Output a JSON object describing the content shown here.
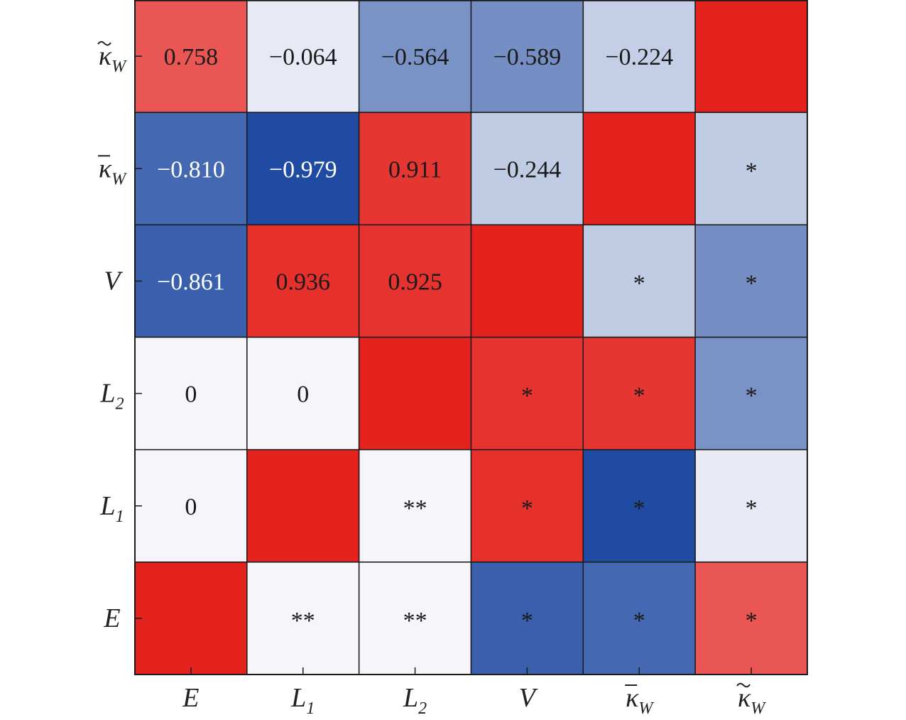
{
  "chart_data": {
    "type": "heatmap",
    "x_labels": [
      {
        "base": "E",
        "sub": "",
        "mark": ""
      },
      {
        "base": "L",
        "sub": "1",
        "mark": ""
      },
      {
        "base": "L",
        "sub": "2",
        "mark": ""
      },
      {
        "base": "V",
        "sub": "",
        "mark": ""
      },
      {
        "base": "κ",
        "sub": "W",
        "mark": "bar"
      },
      {
        "base": "κ",
        "sub": "W",
        "mark": "tilde"
      }
    ],
    "y_labels_top_to_bottom": [
      {
        "base": "κ",
        "sub": "W",
        "mark": "tilde"
      },
      {
        "base": "κ",
        "sub": "W",
        "mark": "bar"
      },
      {
        "base": "V",
        "sub": "",
        "mark": ""
      },
      {
        "base": "L",
        "sub": "2",
        "mark": ""
      },
      {
        "base": "L",
        "sub": "1",
        "mark": ""
      },
      {
        "base": "E",
        "sub": "",
        "mark": ""
      }
    ],
    "cells_top_to_bottom": [
      [
        {
          "value": 0.758,
          "text": "0.758"
        },
        {
          "value": -0.064,
          "text": "−0.064"
        },
        {
          "value": -0.564,
          "text": "−0.564"
        },
        {
          "value": -0.589,
          "text": "−0.589"
        },
        {
          "value": -0.224,
          "text": "−0.224"
        },
        {
          "value": 1,
          "text": ""
        }
      ],
      [
        {
          "value": -0.81,
          "text": "−0.810"
        },
        {
          "value": -0.979,
          "text": "−0.979"
        },
        {
          "value": 0.911,
          "text": "0.911"
        },
        {
          "value": -0.244,
          "text": "−0.244"
        },
        {
          "value": 1,
          "text": ""
        },
        {
          "value": -0.244,
          "text": "*"
        }
      ],
      [
        {
          "value": -0.861,
          "text": "−0.861"
        },
        {
          "value": 0.936,
          "text": "0.936"
        },
        {
          "value": 0.925,
          "text": "0.925"
        },
        {
          "value": 1,
          "text": ""
        },
        {
          "value": -0.244,
          "text": "*"
        },
        {
          "value": -0.589,
          "text": "*"
        }
      ],
      [
        {
          "value": 0,
          "text": "0"
        },
        {
          "value": 0,
          "text": "0"
        },
        {
          "value": 1,
          "text": ""
        },
        {
          "value": 0.925,
          "text": "*"
        },
        {
          "value": 0.911,
          "text": "*"
        },
        {
          "value": -0.564,
          "text": "*"
        }
      ],
      [
        {
          "value": 0,
          "text": "0"
        },
        {
          "value": 1,
          "text": ""
        },
        {
          "value": 0,
          "text": "**"
        },
        {
          "value": 0.936,
          "text": "*"
        },
        {
          "value": -0.979,
          "text": "*"
        },
        {
          "value": -0.064,
          "text": "*"
        }
      ],
      [
        {
          "value": 1,
          "text": ""
        },
        {
          "value": 0,
          "text": "**"
        },
        {
          "value": 0,
          "text": "**"
        },
        {
          "value": -0.861,
          "text": "*"
        },
        {
          "value": -0.81,
          "text": "*"
        },
        {
          "value": 0.758,
          "text": "*"
        }
      ]
    ],
    "color_scale": {
      "negative": "#1b47a0",
      "zero": "#f5f5fa",
      "positive": "#e5231e"
    },
    "text_colors": {
      "dark": "#1a1a1a",
      "light": "#ffffff"
    },
    "grid": true,
    "legend": "none",
    "title": "",
    "xlabel": "",
    "ylabel": ""
  }
}
